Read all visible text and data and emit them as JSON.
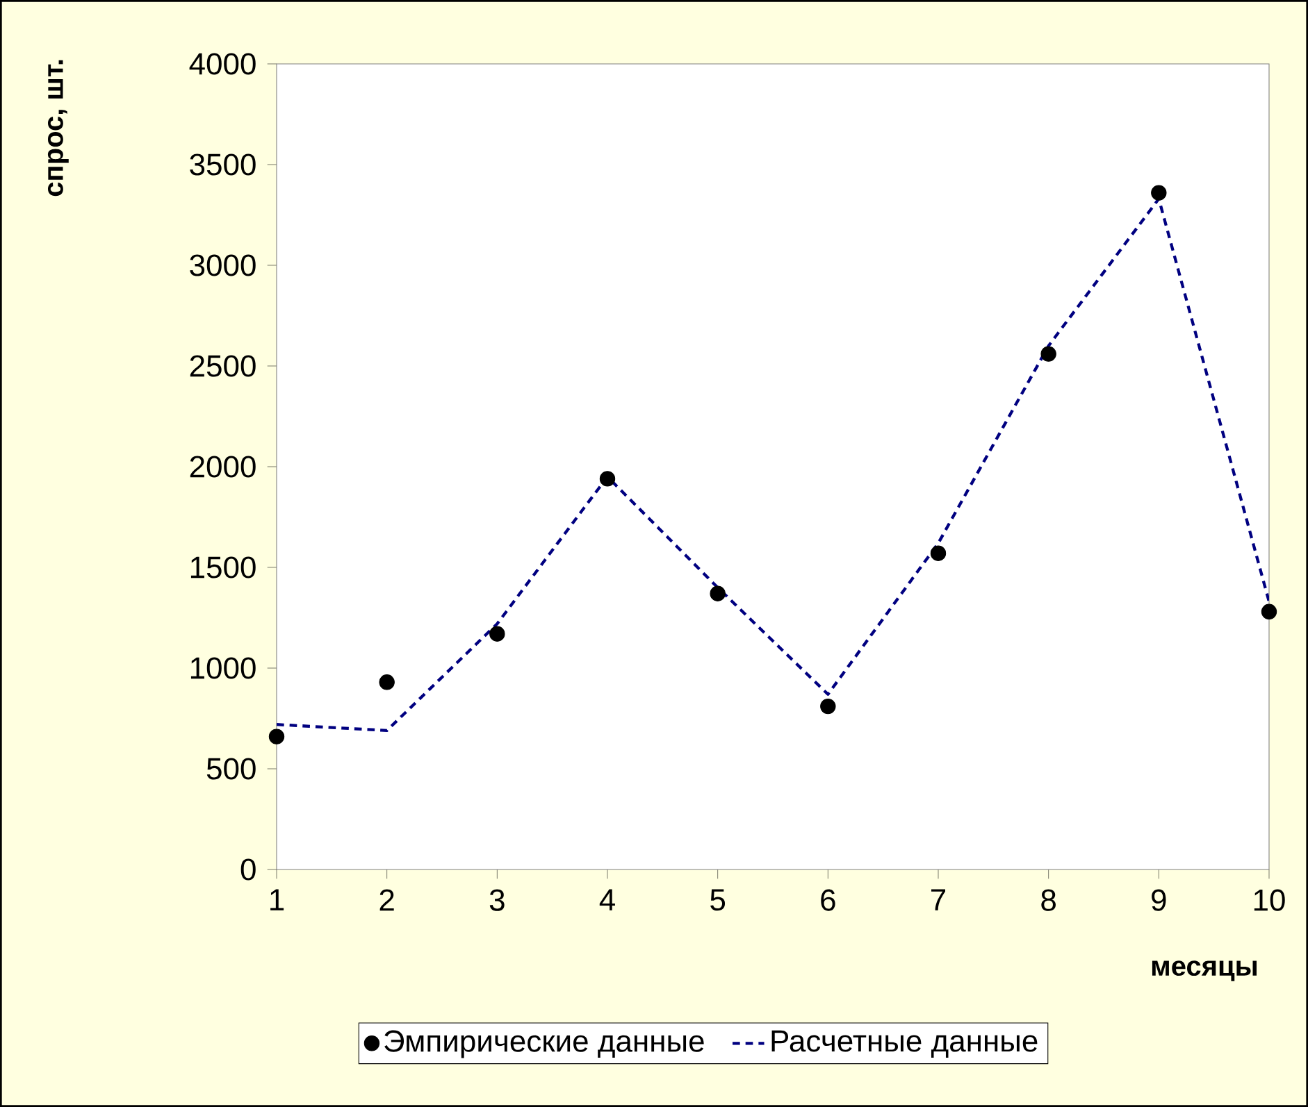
{
  "chart_data": {
    "type": "scatter",
    "xlabel": "месяцы",
    "ylabel": "спрос, шт.",
    "x": [
      1,
      2,
      3,
      4,
      5,
      6,
      7,
      8,
      9,
      10
    ],
    "series": [
      {
        "name": "Эмпирические данные",
        "color": "#000000",
        "marker": "circle",
        "values": [
          660,
          930,
          1170,
          1940,
          1370,
          810,
          1570,
          2560,
          3360,
          1280
        ]
      },
      {
        "name": "Расчетные данные",
        "type": "line",
        "color": "#000080",
        "marker": "none",
        "line_style": "dashed",
        "values": [
          720,
          690,
          1220,
          1950,
          1400,
          870,
          1620,
          2600,
          3330,
          1330
        ]
      }
    ],
    "xlim": [
      1,
      10
    ],
    "xticks": [
      1,
      2,
      3,
      4,
      5,
      6,
      7,
      8,
      9,
      10
    ],
    "ylim": [
      0,
      4000
    ],
    "yticks": [
      0,
      500,
      1000,
      1500,
      2000,
      2500,
      3000,
      3500,
      4000
    ],
    "grid": false,
    "legend": "bottom"
  }
}
